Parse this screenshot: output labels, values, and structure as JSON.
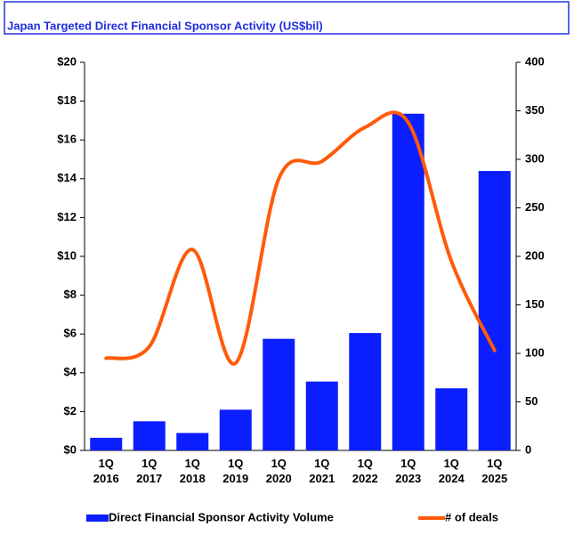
{
  "chart_data": {
    "type": "bar_line",
    "title": "Japan Targeted Direct Financial Sponsor Activity (US$bil)",
    "categories": [
      [
        "1Q",
        "2016"
      ],
      [
        "1Q",
        "2017"
      ],
      [
        "1Q",
        "2018"
      ],
      [
        "1Q",
        "2019"
      ],
      [
        "1Q",
        "2020"
      ],
      [
        "1Q",
        "2021"
      ],
      [
        "1Q",
        "2022"
      ],
      [
        "1Q",
        "2023"
      ],
      [
        "1Q",
        "2024"
      ],
      [
        "1Q",
        "2025"
      ]
    ],
    "series": [
      {
        "name": "Direct Financial Sponsor Activity Volume",
        "type": "bar",
        "color": "#0a1eff",
        "axis": "y",
        "values": [
          0.65,
          1.5,
          0.9,
          2.1,
          5.75,
          3.55,
          6.05,
          17.35,
          3.2,
          14.4
        ]
      },
      {
        "name": "# of deals",
        "type": "line",
        "color": "#ff5a0a",
        "axis": "y2",
        "values": [
          95,
          107,
          207,
          90,
          280,
          298,
          333,
          338,
          195,
          103
        ]
      }
    ],
    "ylim": [
      0,
      20
    ],
    "yticks": [
      {
        "value": 0,
        "label": "$0"
      },
      {
        "value": 2,
        "label": "$2"
      },
      {
        "value": 4,
        "label": "$4"
      },
      {
        "value": 6,
        "label": "$6"
      },
      {
        "value": 8,
        "label": "$8"
      },
      {
        "value": 10,
        "label": "$10"
      },
      {
        "value": 12,
        "label": "$12"
      },
      {
        "value": 14,
        "label": "$14"
      },
      {
        "value": 16,
        "label": "$16"
      },
      {
        "value": 18,
        "label": "$18"
      },
      {
        "value": 20,
        "label": "$20"
      }
    ],
    "y2lim": [
      0,
      400
    ],
    "y2ticks": [
      0,
      50,
      100,
      150,
      200,
      250,
      300,
      350,
      400
    ],
    "grid": false,
    "legend": "bottom"
  }
}
